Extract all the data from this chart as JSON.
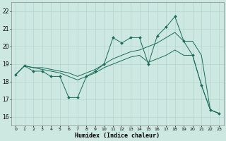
{
  "xlabel": "Humidex (Indice chaleur)",
  "xlim": [
    -0.5,
    23.5
  ],
  "ylim": [
    15.5,
    22.5
  ],
  "yticks": [
    16,
    17,
    18,
    19,
    20,
    21,
    22
  ],
  "xticks": [
    0,
    1,
    2,
    3,
    4,
    5,
    6,
    7,
    8,
    9,
    10,
    11,
    12,
    13,
    14,
    15,
    16,
    17,
    18,
    19,
    20,
    21,
    22,
    23
  ],
  "bg_color": "#cce8e0",
  "grid_color": "#b0d4cc",
  "line_color": "#1a6b5a",
  "line1": {
    "x": [
      0,
      1,
      2,
      3,
      4,
      5,
      6,
      7,
      8,
      9,
      10,
      11,
      12,
      13,
      14,
      15,
      16,
      17,
      18,
      19,
      20,
      21,
      22,
      23
    ],
    "y": [
      18.4,
      18.9,
      18.6,
      18.6,
      18.3,
      18.3,
      17.1,
      17.1,
      18.3,
      18.6,
      19.0,
      20.5,
      20.2,
      20.5,
      20.5,
      19.0,
      20.6,
      21.1,
      21.7,
      20.3,
      19.5,
      17.8,
      16.4,
      16.2
    ]
  },
  "line2": {
    "x": [
      0,
      1,
      2,
      3,
      4,
      5,
      6,
      7,
      8,
      9,
      10,
      11,
      12,
      13,
      14,
      15,
      16,
      17,
      18,
      19,
      20,
      21,
      22,
      23
    ],
    "y": [
      18.4,
      18.9,
      18.8,
      18.8,
      18.7,
      18.6,
      18.5,
      18.3,
      18.5,
      18.7,
      19.0,
      19.3,
      19.5,
      19.7,
      19.8,
      20.0,
      20.2,
      20.5,
      20.8,
      20.3,
      20.3,
      19.5,
      16.4,
      16.2
    ]
  },
  "line3": {
    "x": [
      0,
      1,
      2,
      3,
      4,
      5,
      6,
      7,
      8,
      9,
      10,
      11,
      12,
      13,
      14,
      15,
      16,
      17,
      18,
      19,
      20,
      21,
      22,
      23
    ],
    "y": [
      18.4,
      18.9,
      18.8,
      18.7,
      18.6,
      18.5,
      18.3,
      18.1,
      18.3,
      18.5,
      18.8,
      19.0,
      19.2,
      19.4,
      19.5,
      19.1,
      19.3,
      19.5,
      19.8,
      19.5,
      19.5,
      17.8,
      16.4,
      16.2
    ]
  }
}
